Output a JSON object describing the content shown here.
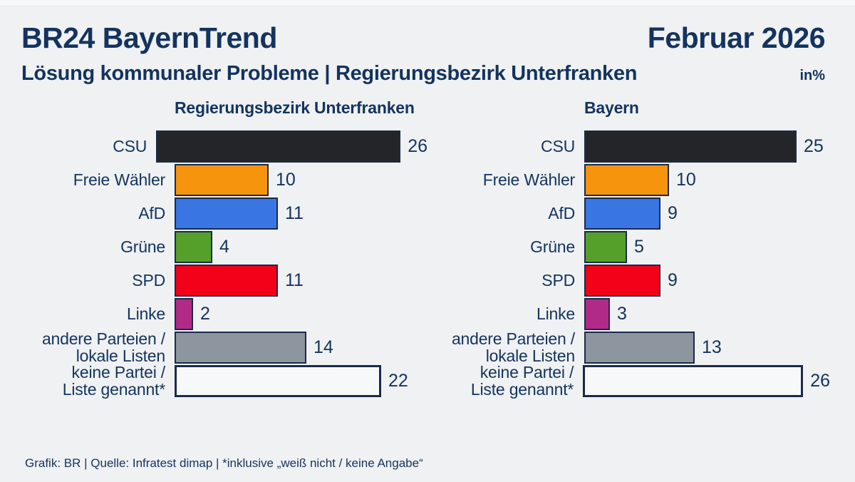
{
  "header": {
    "title": "BR24 BayernTrend",
    "date": "Februar 2026",
    "subtitle": "Lösung kommunaler Probleme | Regierungsbezirk Unterfranken",
    "unit_label": "in%"
  },
  "footer": {
    "source": "Grafik: BR | Quelle: Infratest dimap | *inklusive „weiß nicht / keine Angabe“"
  },
  "colors": {
    "background": "#eff1f2",
    "text_navy": "#14335e",
    "bar_border": "#1b2a4a"
  },
  "chart_data": [
    {
      "type": "bar",
      "orientation": "horizontal",
      "title": "Regierungsbezirk Unterfranken",
      "unit": "%",
      "xlim": [
        0,
        26
      ],
      "grid": false,
      "categories": [
        "CSU",
        "Freie Wähler",
        "AfD",
        "Grüne",
        "SPD",
        "Linke",
        "andere Parteien /\nlokale Listen",
        "keine Partei /\nListe genannt*"
      ],
      "values": [
        26,
        10,
        11,
        4,
        11,
        2,
        14,
        22
      ],
      "bar_colors": [
        "#242528",
        "#f7940d",
        "#3a75e4",
        "#55a02b",
        "#f30019",
        "#b12a88",
        "#8d959e",
        "#f7f8f9"
      ]
    },
    {
      "type": "bar",
      "orientation": "horizontal",
      "title": "Bayern",
      "unit": "%",
      "xlim": [
        0,
        26
      ],
      "grid": false,
      "categories": [
        "CSU",
        "Freie Wähler",
        "AfD",
        "Grüne",
        "SPD",
        "Linke",
        "andere Parteien /\nlokale Listen",
        "keine Partei /\nListe genannt*"
      ],
      "values": [
        25,
        10,
        9,
        5,
        9,
        3,
        13,
        26
      ],
      "bar_colors": [
        "#242528",
        "#f7940d",
        "#3a75e4",
        "#55a02b",
        "#f30019",
        "#b12a88",
        "#8d959e",
        "#f7f8f9"
      ]
    }
  ]
}
